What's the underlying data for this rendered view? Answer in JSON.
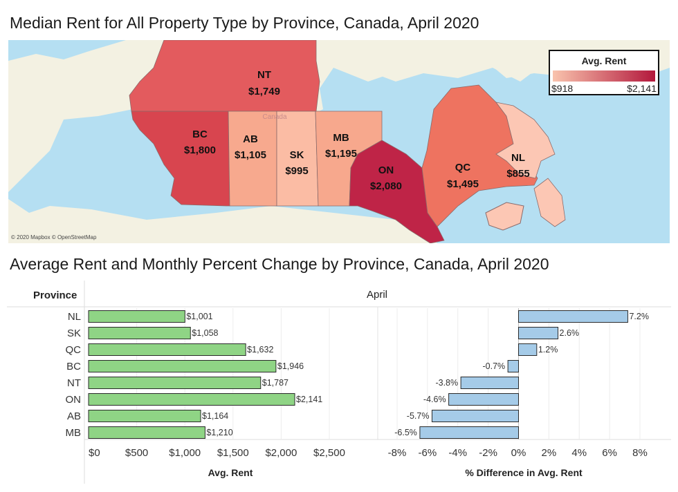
{
  "map_title": "Median Rent for All Property Type by Province, Canada, April 2020",
  "chart_title": "Average Rent and Monthly Percent Change by Province, Canada, April 2020",
  "map": {
    "credit": "© 2020 Mapbox © OpenStreetMap",
    "country_label": "Canada",
    "legend": {
      "title": "Avg. Rent",
      "min": "$918",
      "max": "$2,141",
      "color_low": "#f9c3ad",
      "color_high": "#b3183c"
    },
    "provinces": [
      {
        "code": "NT",
        "value": "$1,749",
        "color": "#e35b5e"
      },
      {
        "code": "BC",
        "value": "$1,800",
        "color": "#d8454f"
      },
      {
        "code": "AB",
        "value": "$1,105",
        "color": "#f7a98e"
      },
      {
        "code": "SK",
        "value": "$995",
        "color": "#fbbca4"
      },
      {
        "code": "MB",
        "value": "$1,195",
        "color": "#f7a88d"
      },
      {
        "code": "ON",
        "value": "$2,080",
        "color": "#bf2447"
      },
      {
        "code": "QC",
        "value": "$1,495",
        "color": "#ee7360"
      },
      {
        "code": "NL",
        "value": "$855",
        "color": "#fcc7b4"
      }
    ],
    "ocean_color": "#b5dff2",
    "land_color": "#f3f1e2"
  },
  "chart_data": [
    {
      "type": "bar",
      "orientation": "horizontal",
      "row_header": "Province",
      "column_header": "April",
      "categories": [
        "NL",
        "SK",
        "QC",
        "BC",
        "NT",
        "ON",
        "AB",
        "MB"
      ],
      "values": [
        1001,
        1058,
        1632,
        1946,
        1787,
        2141,
        1164,
        1210
      ],
      "value_labels": [
        "$1,001",
        "$1,058",
        "$1,632",
        "$1,946",
        "$1,787",
        "$2,141",
        "$1,164",
        "$1,210"
      ],
      "xlabel": "Avg. Rent",
      "xlim": [
        0,
        2500
      ],
      "ticks": [
        "$0",
        "$500",
        "$1,000",
        "$1,500",
        "$2,000",
        "$2,500"
      ],
      "color": "#8fd485",
      "grid": true
    },
    {
      "type": "bar",
      "orientation": "horizontal",
      "categories": [
        "NL",
        "SK",
        "QC",
        "BC",
        "NT",
        "ON",
        "AB",
        "MB"
      ],
      "values": [
        7.2,
        2.6,
        1.2,
        -0.7,
        -3.8,
        -4.6,
        -5.7,
        -6.5
      ],
      "value_labels": [
        "7.2%",
        "2.6%",
        "1.2%",
        "-0.7%",
        "-3.8%",
        "-4.6%",
        "-5.7%",
        "-6.5%"
      ],
      "xlabel": "% Difference in Avg. Rent",
      "xlim": [
        -8,
        8
      ],
      "ticks": [
        "-8%",
        "-6%",
        "-4%",
        "-2%",
        "0%",
        "2%",
        "4%",
        "6%",
        "8%"
      ],
      "color": "#a5cbe8",
      "grid": true
    }
  ]
}
